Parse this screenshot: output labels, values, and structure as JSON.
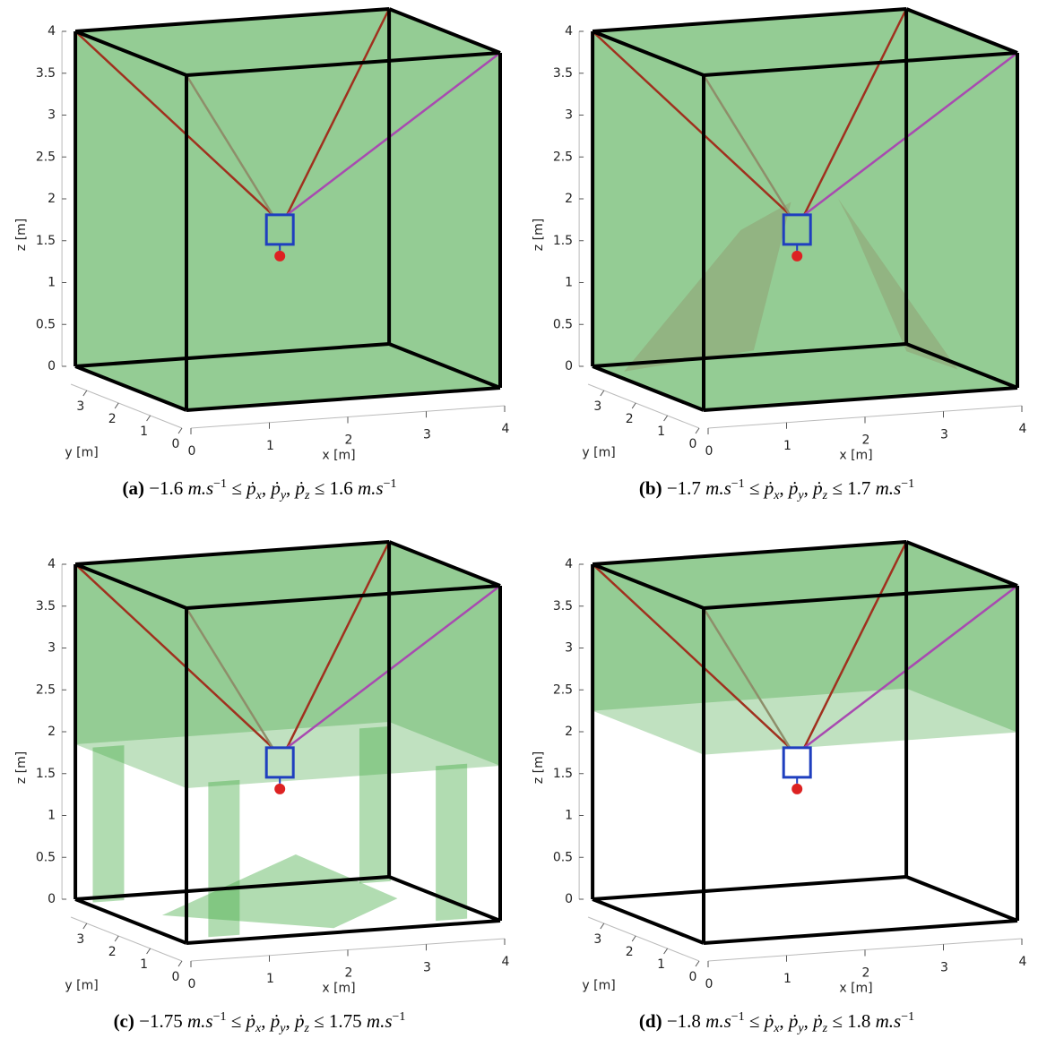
{
  "panels": [
    {
      "xlabel": "x [m]",
      "ylabel": "y [m]",
      "zlabel": "z [m]",
      "xlim": [
        0,
        4
      ],
      "ylim": [
        0,
        3.5
      ],
      "zlim": [
        0,
        4
      ],
      "xticks": [
        0,
        1,
        2,
        3,
        4
      ],
      "yticks": [
        0,
        1,
        2,
        3
      ],
      "zticks": [
        0,
        0.5,
        1,
        1.5,
        2,
        2.5,
        3,
        3.5,
        4
      ],
      "caption": [
        {
          "text": "(a)",
          "style": "bold"
        },
        {
          "text": " −1.6 "
        },
        {
          "text": "m.s",
          "style": "italic"
        },
        {
          "text": "−1",
          "style": "sup"
        },
        {
          "text": " ≤ "
        },
        {
          "text": "ṗ",
          "style": "italic"
        },
        {
          "text": "x",
          "style": "sub"
        },
        {
          "text": ", "
        },
        {
          "text": "ṗ",
          "style": "italic"
        },
        {
          "text": "y",
          "style": "sub"
        },
        {
          "text": ", "
        },
        {
          "text": "ṗ",
          "style": "italic"
        },
        {
          "text": "z",
          "style": "sub"
        },
        {
          "text": " ≤ 1.6 "
        },
        {
          "text": "m.s",
          "style": "italic"
        },
        {
          "text": "−1",
          "style": "sup"
        }
      ]
    },
    {
      "xlabel": "x [m]",
      "ylabel": "y [m]",
      "zlabel": "z [m]",
      "xlim": [
        0,
        4
      ],
      "ylim": [
        0,
        3.5
      ],
      "zlim": [
        0,
        4
      ],
      "xticks": [
        0,
        1,
        2,
        3,
        4
      ],
      "yticks": [
        0,
        1,
        2,
        3
      ],
      "zticks": [
        0,
        0.5,
        1,
        1.5,
        2,
        2.5,
        3,
        3.5,
        4
      ],
      "caption": [
        {
          "text": "(b)",
          "style": "bold"
        },
        {
          "text": " −1.7 "
        },
        {
          "text": "m.s",
          "style": "italic"
        },
        {
          "text": "−1",
          "style": "sup"
        },
        {
          "text": " ≤ "
        },
        {
          "text": "ṗ",
          "style": "italic"
        },
        {
          "text": "x",
          "style": "sub"
        },
        {
          "text": ", "
        },
        {
          "text": "ṗ",
          "style": "italic"
        },
        {
          "text": "y",
          "style": "sub"
        },
        {
          "text": ", "
        },
        {
          "text": "ṗ",
          "style": "italic"
        },
        {
          "text": "z",
          "style": "sub"
        },
        {
          "text": " ≤ 1.7 "
        },
        {
          "text": "m.s",
          "style": "italic"
        },
        {
          "text": "−1",
          "style": "sup"
        }
      ]
    },
    {
      "xlabel": "x [m]",
      "ylabel": "y [m]",
      "zlabel": "z [m]",
      "xlim": [
        0,
        4
      ],
      "ylim": [
        0,
        3.5
      ],
      "zlim": [
        0,
        4
      ],
      "xticks": [
        0,
        1,
        2,
        3,
        4
      ],
      "yticks": [
        0,
        1,
        2,
        3
      ],
      "zticks": [
        0,
        0.5,
        1,
        1.5,
        2,
        2.5,
        3,
        3.5,
        4
      ],
      "caption": [
        {
          "text": "(c)",
          "style": "bold"
        },
        {
          "text": " −1.75 "
        },
        {
          "text": "m.s",
          "style": "italic"
        },
        {
          "text": "−1",
          "style": "sup"
        },
        {
          "text": " ≤ "
        },
        {
          "text": "ṗ",
          "style": "italic"
        },
        {
          "text": "x",
          "style": "sub"
        },
        {
          "text": ", "
        },
        {
          "text": "ṗ",
          "style": "italic"
        },
        {
          "text": "y",
          "style": "sub"
        },
        {
          "text": ", "
        },
        {
          "text": "ṗ",
          "style": "italic"
        },
        {
          "text": "z",
          "style": "sub"
        },
        {
          "text": " ≤ 1.75 "
        },
        {
          "text": "m.s",
          "style": "italic"
        },
        {
          "text": "−1",
          "style": "sup"
        }
      ]
    },
    {
      "xlabel": "x [m]",
      "ylabel": "y [m]",
      "zlabel": "z [m]",
      "xlim": [
        0,
        4
      ],
      "ylim": [
        0,
        3.5
      ],
      "zlim": [
        0,
        4
      ],
      "xticks": [
        0,
        1,
        2,
        3,
        4
      ],
      "yticks": [
        0,
        1,
        2,
        3
      ],
      "zticks": [
        0,
        0.5,
        1,
        1.5,
        2,
        2.5,
        3,
        3.5,
        4
      ],
      "caption": [
        {
          "text": "(d)",
          "style": "bold"
        },
        {
          "text": " −1.8 "
        },
        {
          "text": "m.s",
          "style": "italic"
        },
        {
          "text": "−1",
          "style": "sup"
        },
        {
          "text": " ≤ "
        },
        {
          "text": "ṗ",
          "style": "italic"
        },
        {
          "text": "x",
          "style": "sub"
        },
        {
          "text": ", "
        },
        {
          "text": "ṗ",
          "style": "italic"
        },
        {
          "text": "y",
          "style": "sub"
        },
        {
          "text": ", "
        },
        {
          "text": "ṗ",
          "style": "italic"
        },
        {
          "text": "z",
          "style": "sub"
        },
        {
          "text": " ≤ 1.8 "
        },
        {
          "text": "m.s",
          "style": "italic"
        },
        {
          "text": "−1",
          "style": "sup"
        }
      ]
    }
  ]
}
